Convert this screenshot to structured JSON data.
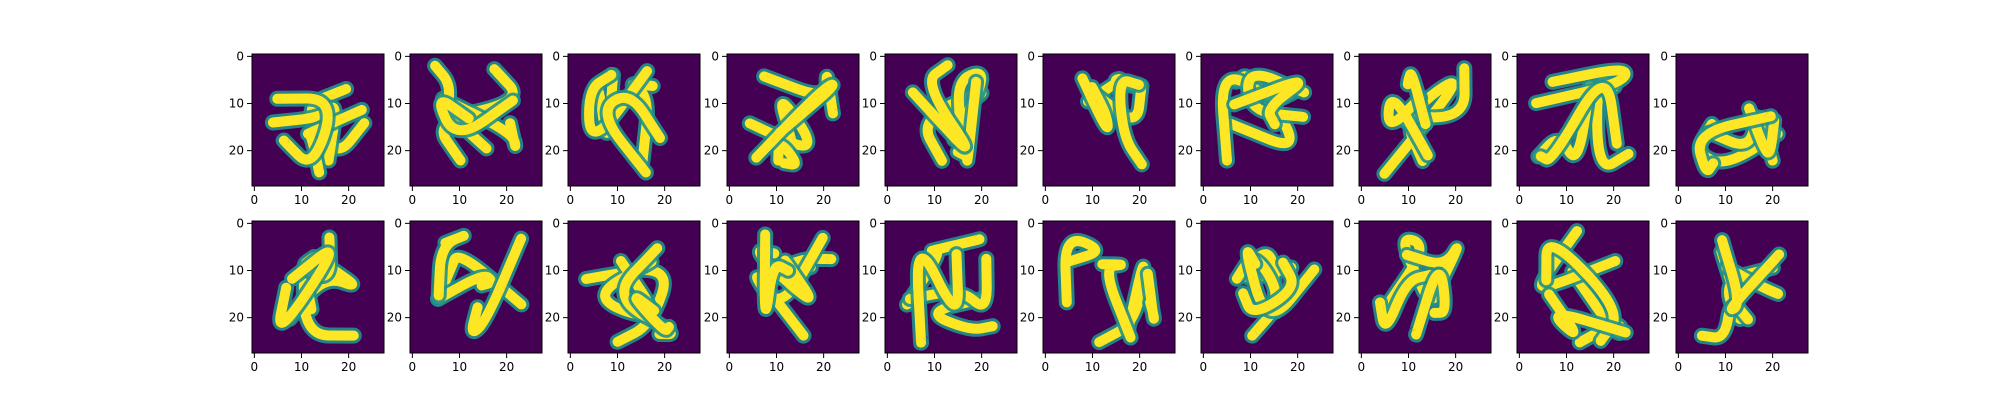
{
  "chart_data": {
    "type": "heatmap",
    "layout": {
      "rows": 2,
      "cols": 10
    },
    "image_size": [
      28,
      28
    ],
    "x_ticks": [
      0,
      10,
      20
    ],
    "y_ticks": [
      0,
      10,
      20
    ],
    "x_tick_labels": [
      "0",
      "10",
      "20"
    ],
    "y_tick_labels": [
      "0",
      "10",
      "20"
    ],
    "colormap": {
      "low": "#440154",
      "mid": "#21918c",
      "high": "#fde725"
    },
    "row_labels": [],
    "panels_per_row": 10
  }
}
